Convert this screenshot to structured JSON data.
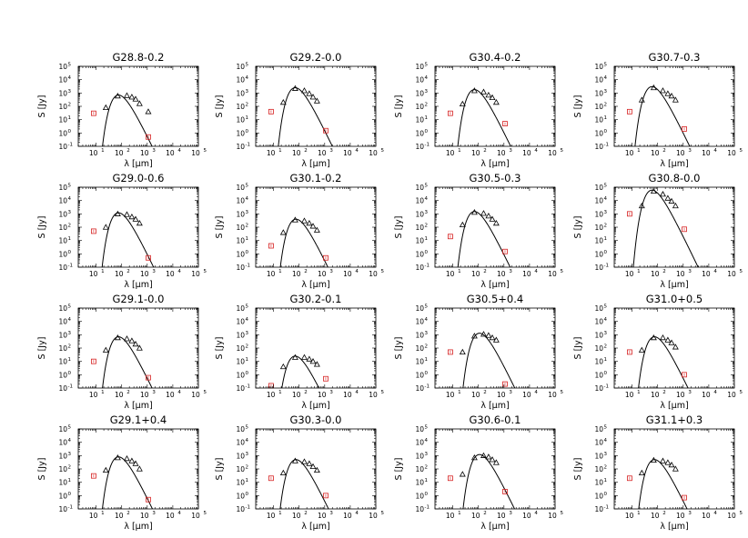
{
  "chart_data": {
    "type": "grid_of_sed_plots",
    "xscale": "log",
    "yscale": "log",
    "xlim": [
      2,
      100000
    ],
    "ylim": [
      0.1,
      100000
    ],
    "xlabel": "λ [μm]",
    "ylabel": "S [Jy]",
    "xtick_labels": [
      "10",
      "10",
      "10",
      "10",
      "10"
    ],
    "xtick_exponents": [
      "1",
      "2",
      "3",
      "4",
      "5"
    ],
    "ytick_labels": [
      "10",
      "10",
      "10",
      "10",
      "10",
      "10",
      "10"
    ],
    "ytick_exponents": [
      "-1",
      "0",
      "1",
      "2",
      "3",
      "4",
      "5"
    ],
    "model_color": "#000000",
    "triangle_color": "#000000",
    "square_color": "#d62020",
    "panels": [
      {
        "name": "G28.8-0.2",
        "peak_lambda": 75,
        "peak_S": 700,
        "triangles": [
          [
            24,
            80
          ],
          [
            70,
            600
          ],
          [
            160,
            650
          ],
          [
            250,
            500
          ],
          [
            350,
            350
          ],
          [
            500,
            160
          ],
          [
            1100,
            40
          ]
        ],
        "squares": [
          [
            8,
            30
          ],
          [
            1100,
            0.5
          ]
        ]
      },
      {
        "name": "G29.2-0.0",
        "peak_lambda": 70,
        "peak_S": 2500,
        "triangles": [
          [
            24,
            200
          ],
          [
            70,
            2200
          ],
          [
            160,
            1500
          ],
          [
            250,
            900
          ],
          [
            350,
            500
          ],
          [
            500,
            250
          ]
        ],
        "squares": [
          [
            8,
            40
          ],
          [
            1100,
            1.5
          ]
        ]
      },
      {
        "name": "G30.4-0.2",
        "peak_lambda": 70,
        "peak_S": 1800,
        "triangles": [
          [
            24,
            150
          ],
          [
            70,
            1500
          ],
          [
            160,
            1200
          ],
          [
            250,
            700
          ],
          [
            350,
            450
          ],
          [
            500,
            200
          ]
        ],
        "squares": [
          [
            8,
            30
          ],
          [
            1100,
            5
          ]
        ]
      },
      {
        "name": "G30.7-0.3",
        "peak_lambda": 60,
        "peak_S": 3000,
        "triangles": [
          [
            24,
            300
          ],
          [
            70,
            2500
          ],
          [
            160,
            1500
          ],
          [
            250,
            900
          ],
          [
            350,
            600
          ],
          [
            500,
            300
          ]
        ],
        "squares": [
          [
            8,
            40
          ],
          [
            1100,
            2
          ]
        ]
      },
      {
        "name": "G29.0-0.6",
        "peak_lambda": 75,
        "peak_S": 1200,
        "triangles": [
          [
            24,
            100
          ],
          [
            70,
            1000
          ],
          [
            160,
            900
          ],
          [
            250,
            600
          ],
          [
            350,
            400
          ],
          [
            500,
            200
          ]
        ],
        "squares": [
          [
            8,
            50
          ],
          [
            1100,
            0.5
          ]
        ]
      },
      {
        "name": "G30.1-0.2",
        "peak_lambda": 75,
        "peak_S": 400,
        "triangles": [
          [
            24,
            40
          ],
          [
            70,
            350
          ],
          [
            160,
            300
          ],
          [
            250,
            200
          ],
          [
            350,
            120
          ],
          [
            500,
            60
          ]
        ],
        "squares": [
          [
            8,
            4
          ],
          [
            1100,
            0.5
          ]
        ]
      },
      {
        "name": "G30.5-0.3",
        "peak_lambda": 70,
        "peak_S": 1500,
        "triangles": [
          [
            24,
            150
          ],
          [
            70,
            1300
          ],
          [
            160,
            1100
          ],
          [
            250,
            700
          ],
          [
            350,
            400
          ],
          [
            500,
            200
          ]
        ],
        "squares": [
          [
            8,
            20
          ],
          [
            1100,
            1.5
          ]
        ]
      },
      {
        "name": "G30.8-0.0",
        "peak_lambda": 60,
        "peak_S": 60000,
        "triangles": [
          [
            24,
            4000
          ],
          [
            70,
            50000
          ],
          [
            160,
            30000
          ],
          [
            250,
            15000
          ],
          [
            350,
            9000
          ],
          [
            500,
            4000
          ]
        ],
        "squares": [
          [
            8,
            1000
          ],
          [
            1100,
            70
          ]
        ]
      },
      {
        "name": "G29.1-0.0",
        "peak_lambda": 75,
        "peak_S": 700,
        "triangles": [
          [
            24,
            70
          ],
          [
            70,
            600
          ],
          [
            160,
            500
          ],
          [
            250,
            350
          ],
          [
            350,
            200
          ],
          [
            500,
            100
          ]
        ],
        "squares": [
          [
            8,
            10
          ],
          [
            1100,
            0.6
          ]
        ]
      },
      {
        "name": "G30.2-0.1",
        "peak_lambda": 70,
        "peak_S": 25,
        "triangles": [
          [
            24,
            4
          ],
          [
            70,
            20
          ],
          [
            160,
            20
          ],
          [
            250,
            15
          ],
          [
            350,
            10
          ],
          [
            500,
            6
          ]
        ],
        "squares": [
          [
            8,
            0.15
          ],
          [
            1100,
            0.5
          ]
        ]
      },
      {
        "name": "G30.5+0.4",
        "peak_lambda": 110,
        "peak_S": 1300,
        "triangles": [
          [
            24,
            50
          ],
          [
            70,
            800
          ],
          [
            160,
            1100
          ],
          [
            250,
            900
          ],
          [
            350,
            600
          ],
          [
            500,
            400
          ]
        ],
        "squares": [
          [
            8,
            50
          ],
          [
            1100,
            0.2
          ]
        ]
      },
      {
        "name": "G31.0+0.5",
        "peak_lambda": 75,
        "peak_S": 700,
        "triangles": [
          [
            24,
            70
          ],
          [
            70,
            600
          ],
          [
            160,
            600
          ],
          [
            250,
            400
          ],
          [
            350,
            250
          ],
          [
            500,
            120
          ]
        ],
        "squares": [
          [
            8,
            50
          ],
          [
            1100,
            1
          ]
        ]
      },
      {
        "name": "G29.1+0.4",
        "peak_lambda": 75,
        "peak_S": 800,
        "triangles": [
          [
            24,
            80
          ],
          [
            70,
            700
          ],
          [
            160,
            600
          ],
          [
            250,
            400
          ],
          [
            350,
            250
          ],
          [
            500,
            100
          ]
        ],
        "squares": [
          [
            8,
            30
          ],
          [
            1100,
            0.5
          ]
        ]
      },
      {
        "name": "G30.3-0.0",
        "peak_lambda": 75,
        "peak_S": 500,
        "triangles": [
          [
            24,
            50
          ],
          [
            70,
            400
          ],
          [
            160,
            350
          ],
          [
            250,
            250
          ],
          [
            350,
            150
          ],
          [
            500,
            80
          ]
        ],
        "squares": [
          [
            8,
            20
          ],
          [
            1100,
            1
          ]
        ]
      },
      {
        "name": "G30.6-0.1",
        "peak_lambda": 110,
        "peak_S": 1200,
        "triangles": [
          [
            24,
            40
          ],
          [
            70,
            700
          ],
          [
            160,
            1000
          ],
          [
            250,
            800
          ],
          [
            350,
            500
          ],
          [
            500,
            300
          ]
        ],
        "squares": [
          [
            8,
            20
          ],
          [
            1100,
            2
          ]
        ]
      },
      {
        "name": "G31.1+0.3",
        "peak_lambda": 75,
        "peak_S": 500,
        "triangles": [
          [
            24,
            50
          ],
          [
            70,
            450
          ],
          [
            160,
            400
          ],
          [
            250,
            300
          ],
          [
            350,
            200
          ],
          [
            500,
            100
          ]
        ],
        "squares": [
          [
            8,
            20
          ],
          [
            1100,
            0.7
          ]
        ]
      }
    ]
  }
}
